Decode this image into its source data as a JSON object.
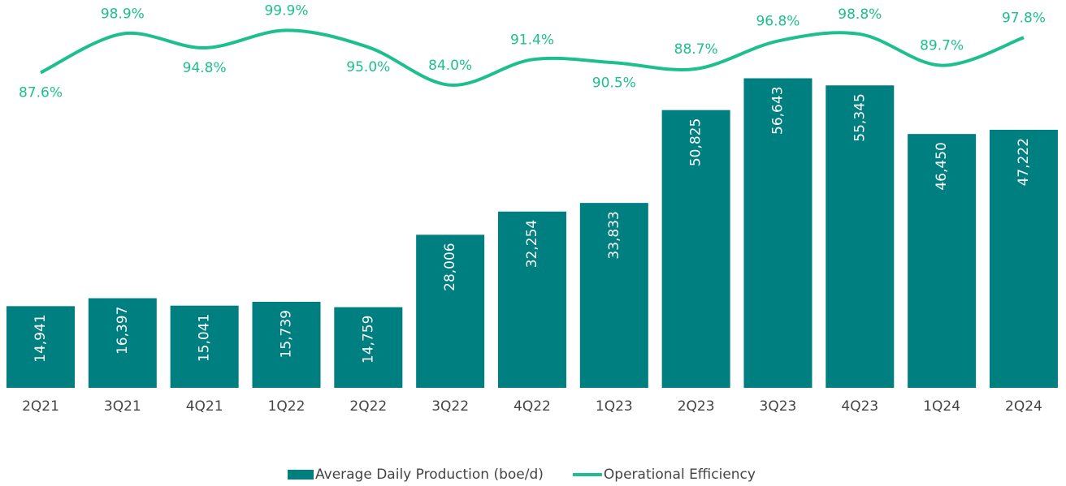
{
  "chart_data": {
    "type": "bar+line",
    "categories": [
      "2Q21",
      "3Q21",
      "4Q21",
      "1Q22",
      "2Q22",
      "3Q22",
      "4Q22",
      "1Q23",
      "2Q23",
      "3Q23",
      "4Q23",
      "1Q24",
      "2Q24"
    ],
    "series": [
      {
        "name": "Average Daily Production (boe/d)",
        "type": "bar",
        "color": "#007f80",
        "values": [
          14941,
          16397,
          15041,
          15739,
          14759,
          28006,
          32254,
          33833,
          50825,
          56643,
          55345,
          46450,
          47222
        ],
        "value_labels": [
          "14,941",
          "16,397",
          "15,041",
          "15,739",
          "14,759",
          "28,006",
          "32,254",
          "33,833",
          "50,825",
          "56,643",
          "55,345",
          "46,450",
          "47,222"
        ]
      },
      {
        "name": "Operational Efficiency",
        "type": "line",
        "axis": "y2",
        "color": "#1dbf8e",
        "values": [
          87.6,
          98.9,
          94.8,
          99.9,
          95.0,
          84.0,
          91.4,
          90.5,
          88.7,
          96.8,
          98.8,
          89.7,
          97.8
        ],
        "value_labels": [
          "87.6%",
          "98.9%",
          "94.8%",
          "99.9%",
          "95.0%",
          "84.0%",
          "91.4%",
          "90.5%",
          "88.7%",
          "96.8%",
          "98.8%",
          "89.7%",
          "97.8%"
        ]
      }
    ],
    "ylim": [
      0,
      68000
    ],
    "y2lim": [
      -4,
      104
    ],
    "legend": "bottom"
  }
}
